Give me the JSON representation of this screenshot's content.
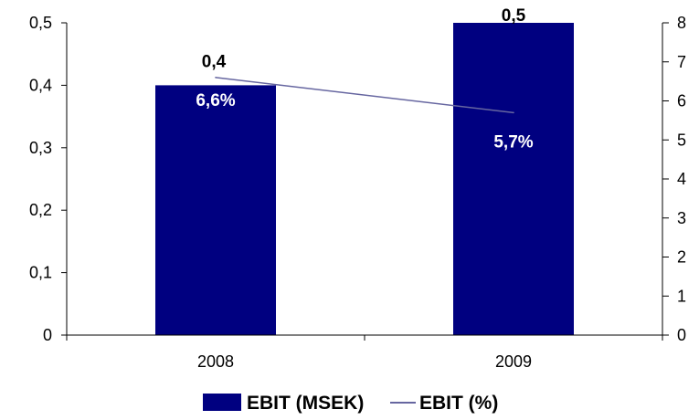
{
  "chart_data": {
    "type": "bar",
    "categories": [
      "2008",
      "2009"
    ],
    "series": [
      {
        "name": "EBIT (MSEK)",
        "type": "bar",
        "axis": "left",
        "values": [
          0.4,
          0.5
        ],
        "labels": [
          "0,4",
          "0,5"
        ],
        "color": "#000080"
      },
      {
        "name": "EBIT (%)",
        "type": "line",
        "axis": "right",
        "values": [
          6.6,
          5.7
        ],
        "labels": [
          "6,6%",
          "5,7%"
        ],
        "color": "#6666a0"
      }
    ],
    "y_left": {
      "range": [
        0,
        0.5
      ],
      "ticks": [
        0,
        0.1,
        0.2,
        0.3,
        0.4,
        0.5
      ],
      "tick_labels": [
        "0",
        "0,1",
        "0,2",
        "0,3",
        "0,4",
        "0,5"
      ]
    },
    "y_right": {
      "range": [
        0,
        8
      ],
      "ticks": [
        0,
        1,
        2,
        3,
        4,
        5,
        6,
        7,
        8
      ],
      "tick_labels": [
        "0",
        "1",
        "2",
        "3",
        "4",
        "5",
        "6",
        "7",
        "8"
      ]
    },
    "grid": false,
    "legend": {
      "position": "bottom",
      "entries": [
        "EBIT (MSEK)",
        "EBIT (%)"
      ]
    },
    "title": "",
    "xlabel": "",
    "ylabel": ""
  }
}
